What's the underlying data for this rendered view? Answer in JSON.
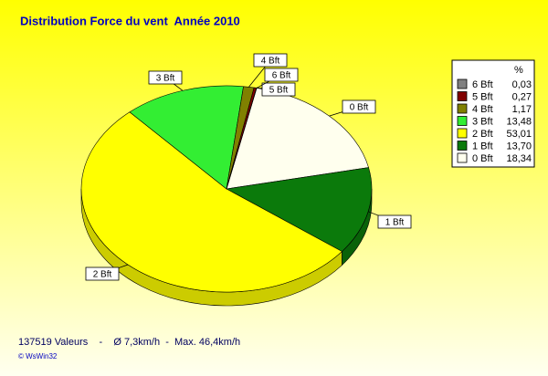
{
  "chart_data": {
    "type": "pie",
    "title": "Distribution Force du vent  Année 2010",
    "legend_header": "%",
    "categories": [
      "6 Bft",
      "5 Bft",
      "4 Bft",
      "3 Bft",
      "2 Bft",
      "1 Bft",
      "0 Bft"
    ],
    "values": [
      0.03,
      0.27,
      1.17,
      13.48,
      53.01,
      13.7,
      18.34
    ],
    "value_labels": [
      "0,03",
      "0,27",
      "1,17",
      "13,48",
      "53,01",
      "13,70",
      "18,34"
    ],
    "colors": [
      "#808080",
      "#800000",
      "#808000",
      "#33ee33",
      "#ffff00",
      "#0b7a0b",
      "#ffffee"
    ],
    "legend": "right",
    "footer": "137519 Valeurs    -    Ø 7,3km/h  -  Max. 46,4km/h",
    "credit": "© WsWin32"
  }
}
